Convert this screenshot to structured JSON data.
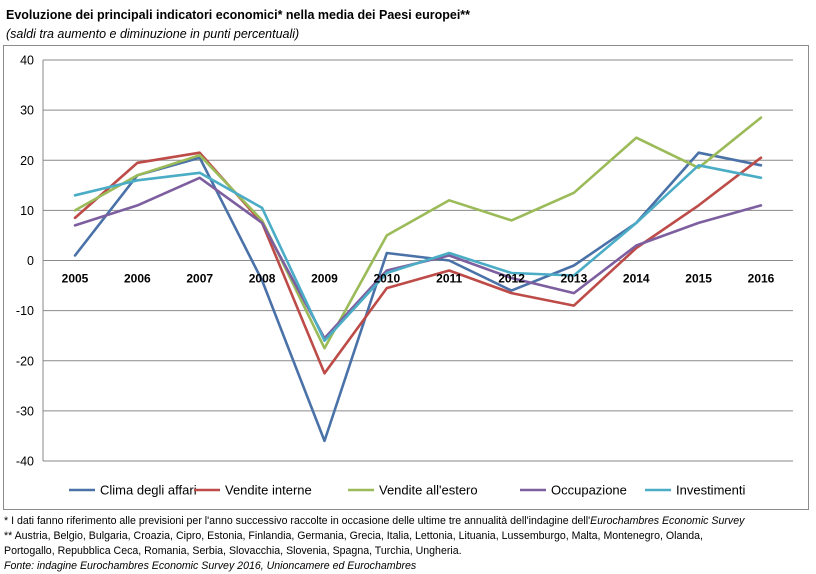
{
  "title": "Evoluzione dei principali indicatori economici* nella media dei Paesi europei**",
  "subtitle": "(saldi tra aumento e diminuzione in punti percentuali)",
  "notes": {
    "note1_prefix": "* I dati fanno riferimento alle previsioni per l'anno successivo raccolte in occasione delle ultime tre annualità dell'indagine dell'",
    "note1_italic": "Eurochambres Economic Survey",
    "note2_line1": "** Austria, Belgio, Bulgaria, Croazia, Cipro, Estonia, Finlandia, Germania, Grecia, Italia, Lettonia, Lituania, Lussemburgo, Malta, Montenegro, Olanda,",
    "note2_line2": "Portogallo, Repubblica Ceca, Romania, Serbia, Slovacchia, Slovenia, Spagna, Turchia, Ungheria.",
    "source": "Fonte: indagine Eurochambres Economic Survey 2016, Unioncamere ed Eurochambres"
  },
  "chart_data": {
    "type": "line",
    "x": [
      "2005",
      "2006",
      "2007",
      "2008",
      "2009",
      "2010",
      "2011",
      "2012",
      "2013",
      "2014",
      "2015",
      "2016"
    ],
    "ylim": [
      -40,
      40
    ],
    "yticks": [
      40,
      30,
      20,
      10,
      0,
      -10,
      -20,
      -30,
      -40
    ],
    "grid": true,
    "legend_position": "bottom",
    "series": [
      {
        "name": "Clima degli affari",
        "color": "#4a72a8",
        "values": [
          1,
          17,
          20.5,
          -4,
          -36,
          1.5,
          0,
          -6,
          -1,
          7.5,
          21.5,
          19
        ]
      },
      {
        "name": "Vendite interne",
        "color": "#bd4b48",
        "values": [
          8.5,
          19.5,
          21.5,
          7.5,
          -22.5,
          -5.5,
          -2,
          -6.5,
          -9,
          2.5,
          11,
          20.5
        ]
      },
      {
        "name": "Vendite all'estero",
        "color": "#9bbb59",
        "values": [
          10,
          17,
          21,
          8,
          -17.5,
          5,
          12,
          8,
          13.5,
          24.5,
          18.5,
          28.5
        ]
      },
      {
        "name": "Occupazione",
        "color": "#7d5fa0",
        "values": [
          7,
          11,
          16.5,
          7.5,
          -15.5,
          -2,
          1,
          -3.5,
          -6.5,
          3,
          7.5,
          11
        ]
      },
      {
        "name": "Investimenti",
        "color": "#4bacc6",
        "values": [
          13,
          16,
          17.5,
          10.5,
          -16,
          -2.5,
          1.5,
          -2.5,
          -3,
          7.5,
          19,
          16.5
        ]
      }
    ]
  }
}
